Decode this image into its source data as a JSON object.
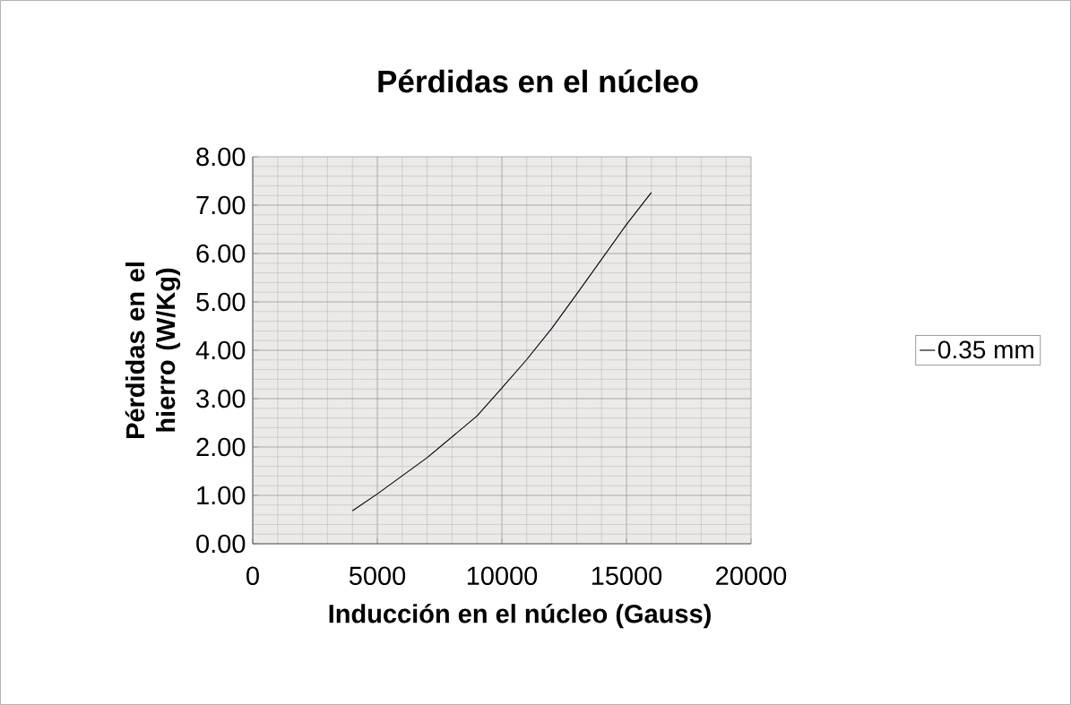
{
  "chart_data": {
    "type": "line",
    "title": "Pérdidas en el núcleo",
    "xlabel": "Inducción en el núcleo (Gauss)",
    "ylabel": "Pérdidas en el hierro (W/Kg)",
    "x": [
      4000,
      5000,
      7000,
      9000,
      10000,
      11000,
      12000,
      13000,
      14000,
      15000,
      16000
    ],
    "series": [
      {
        "name": "0.35 mm",
        "color": "#000000",
        "values": [
          0.68,
          1.03,
          1.78,
          2.64,
          3.22,
          3.81,
          4.45,
          5.16,
          5.88,
          6.6,
          7.26
        ]
      }
    ],
    "xlim": [
      0,
      20000
    ],
    "ylim": [
      0,
      8
    ],
    "xticks": [
      0,
      5000,
      10000,
      15000,
      20000
    ],
    "yticks": [
      {
        "value": 0,
        "label": "0.00"
      },
      {
        "value": 1,
        "label": "1.00"
      },
      {
        "value": 2,
        "label": "2.00"
      },
      {
        "value": 3,
        "label": "3.00"
      },
      {
        "value": 4,
        "label": "4.00"
      },
      {
        "value": 5,
        "label": "5.00"
      },
      {
        "value": 6,
        "label": "6.00"
      },
      {
        "value": 7,
        "label": "7.00"
      },
      {
        "value": 8,
        "label": "8.00"
      }
    ],
    "grid": true,
    "legend": "right",
    "marker": "none",
    "line_style": "solid"
  }
}
